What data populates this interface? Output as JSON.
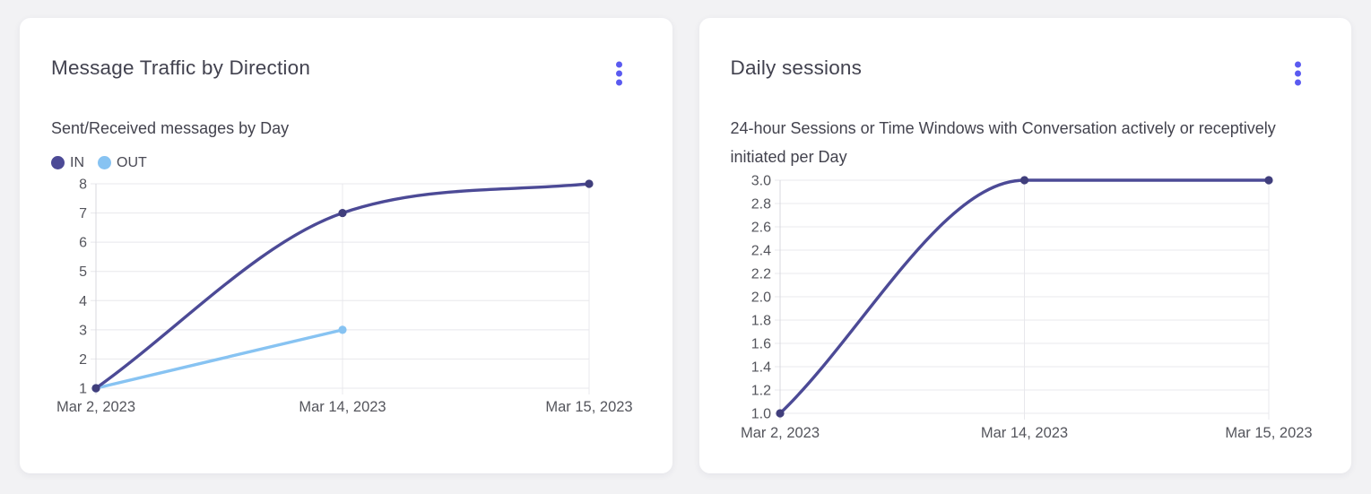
{
  "page": {
    "background": "#f2f2f4"
  },
  "colors": {
    "accent": "#5a5af0",
    "card_background": "#ffffff",
    "grid_line": "#e8e8ec",
    "axis_line": "#d9d9df",
    "tick_text": "#54555c",
    "title_text": "#42424f",
    "subtitle_text": "#43434e"
  },
  "cards": [
    {
      "title": "Message Traffic by Direction",
      "subtitle": "Sent/Received messages by Day",
      "menu_icon": "kebab-menu-icon"
    },
    {
      "title": "Daily sessions",
      "subtitle": "24-hour Sessions or Time Windows with Conversation actively or receptively initiated per Day",
      "menu_icon": "kebab-menu-icon"
    }
  ],
  "chart_data": [
    {
      "type": "line",
      "title": "Message Traffic by Direction",
      "subtitle": "Sent/Received messages by Day",
      "categories": [
        "Mar 2, 2023",
        "Mar 14, 2023",
        "Mar 15, 2023"
      ],
      "series": [
        {
          "name": "IN",
          "values": [
            1,
            7,
            8
          ],
          "color": "#4c4a96",
          "point_color": "#403e7c"
        },
        {
          "name": "OUT",
          "values": [
            1,
            3,
            null
          ],
          "color": "#87c3f2",
          "point_color": "#87c3f2"
        }
      ],
      "xlabel": "",
      "ylabel": "",
      "ylim": [
        1,
        8
      ],
      "ytick_step": 1,
      "y_decimals": 0,
      "grid": true,
      "curve": "monotone",
      "legend_position": "top-left"
    },
    {
      "type": "line",
      "title": "Daily sessions",
      "subtitle": "24-hour Sessions or Time Windows with Conversation actively or receptively initiated per Day",
      "categories": [
        "Mar 2, 2023",
        "Mar 14, 2023",
        "Mar 15, 2023"
      ],
      "series": [
        {
          "name": "Daily sessions",
          "values": [
            1.0,
            3.0,
            3.0
          ],
          "color": "#4c4a96",
          "point_color": "#403e7c"
        }
      ],
      "xlabel": "",
      "ylabel": "",
      "ylim": [
        1.0,
        3.0
      ],
      "ytick_step": 0.2,
      "y_decimals": 1,
      "grid": true,
      "curve": "monotone",
      "legend_position": "none"
    }
  ]
}
